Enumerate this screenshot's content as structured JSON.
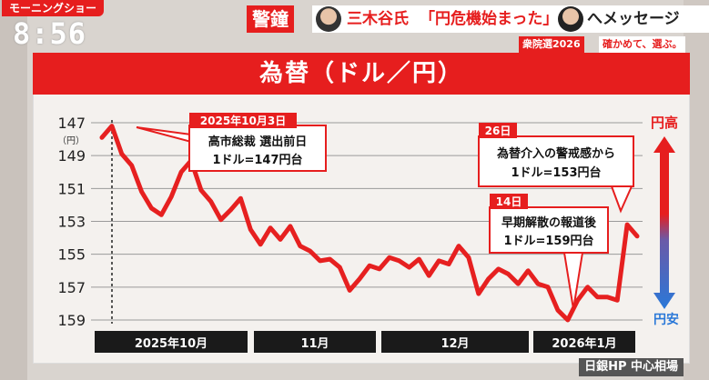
{
  "header": {
    "show_logo": "モーニングショー",
    "clock": "8:56",
    "alert_tag": "警鐘",
    "headline_name": "三木谷氏",
    "headline_quote": "「円危機始まった」",
    "headline_tail": "へメッセージ",
    "election_tag": "衆院選2026",
    "election_slogan": "確かめて、選ぶ。"
  },
  "chart_data": {
    "type": "line",
    "title": "為替（ドル／円）",
    "y_unit": "（円）",
    "ylim": [
      147,
      159
    ],
    "y_inverted": true,
    "y_ticks": [
      147,
      149,
      151,
      153,
      155,
      157,
      159
    ],
    "x_period_labels": [
      "2025年10月",
      "11月",
      "12月",
      "2026年1月"
    ],
    "series": [
      {
        "values": [
          147.9,
          147.2,
          148.9,
          149.6,
          151.2,
          152.2,
          152.6,
          151.5,
          150.0,
          149.3,
          151.1,
          151.8,
          152.9,
          152.3,
          151.6,
          153.5,
          154.4,
          153.4,
          154.1,
          153.3,
          154.5,
          154.8,
          155.4,
          155.3,
          155.8,
          157.2,
          156.5,
          155.7,
          155.9,
          155.2,
          155.4,
          155.8,
          155.3,
          156.3,
          155.4,
          155.6,
          154.5,
          155.2,
          157.4,
          156.5,
          155.9,
          156.2,
          156.8,
          156.0,
          156.8,
          157.0,
          158.4,
          159.0,
          157.8,
          157.0,
          157.6,
          157.6,
          157.8,
          153.2,
          153.9
        ]
      }
    ],
    "annotations": [
      {
        "date": "2025年10月3日",
        "line1": "高市総裁 選出前日",
        "line2": "1ドル=147円台"
      },
      {
        "date": "14日",
        "line1": "早期解散の報道後",
        "line2": "1ドル=159円台"
      },
      {
        "date": "26日",
        "line1": "為替介入の警戒感から",
        "line2": "1ドル=153円台"
      }
    ],
    "scale_labels": {
      "top": "円高",
      "bottom": "円安"
    }
  },
  "source": "日銀HP 中心相場",
  "colors": {
    "accent": "#e61e1e",
    "line": "#e62020",
    "grid": "#9a9a9a"
  }
}
